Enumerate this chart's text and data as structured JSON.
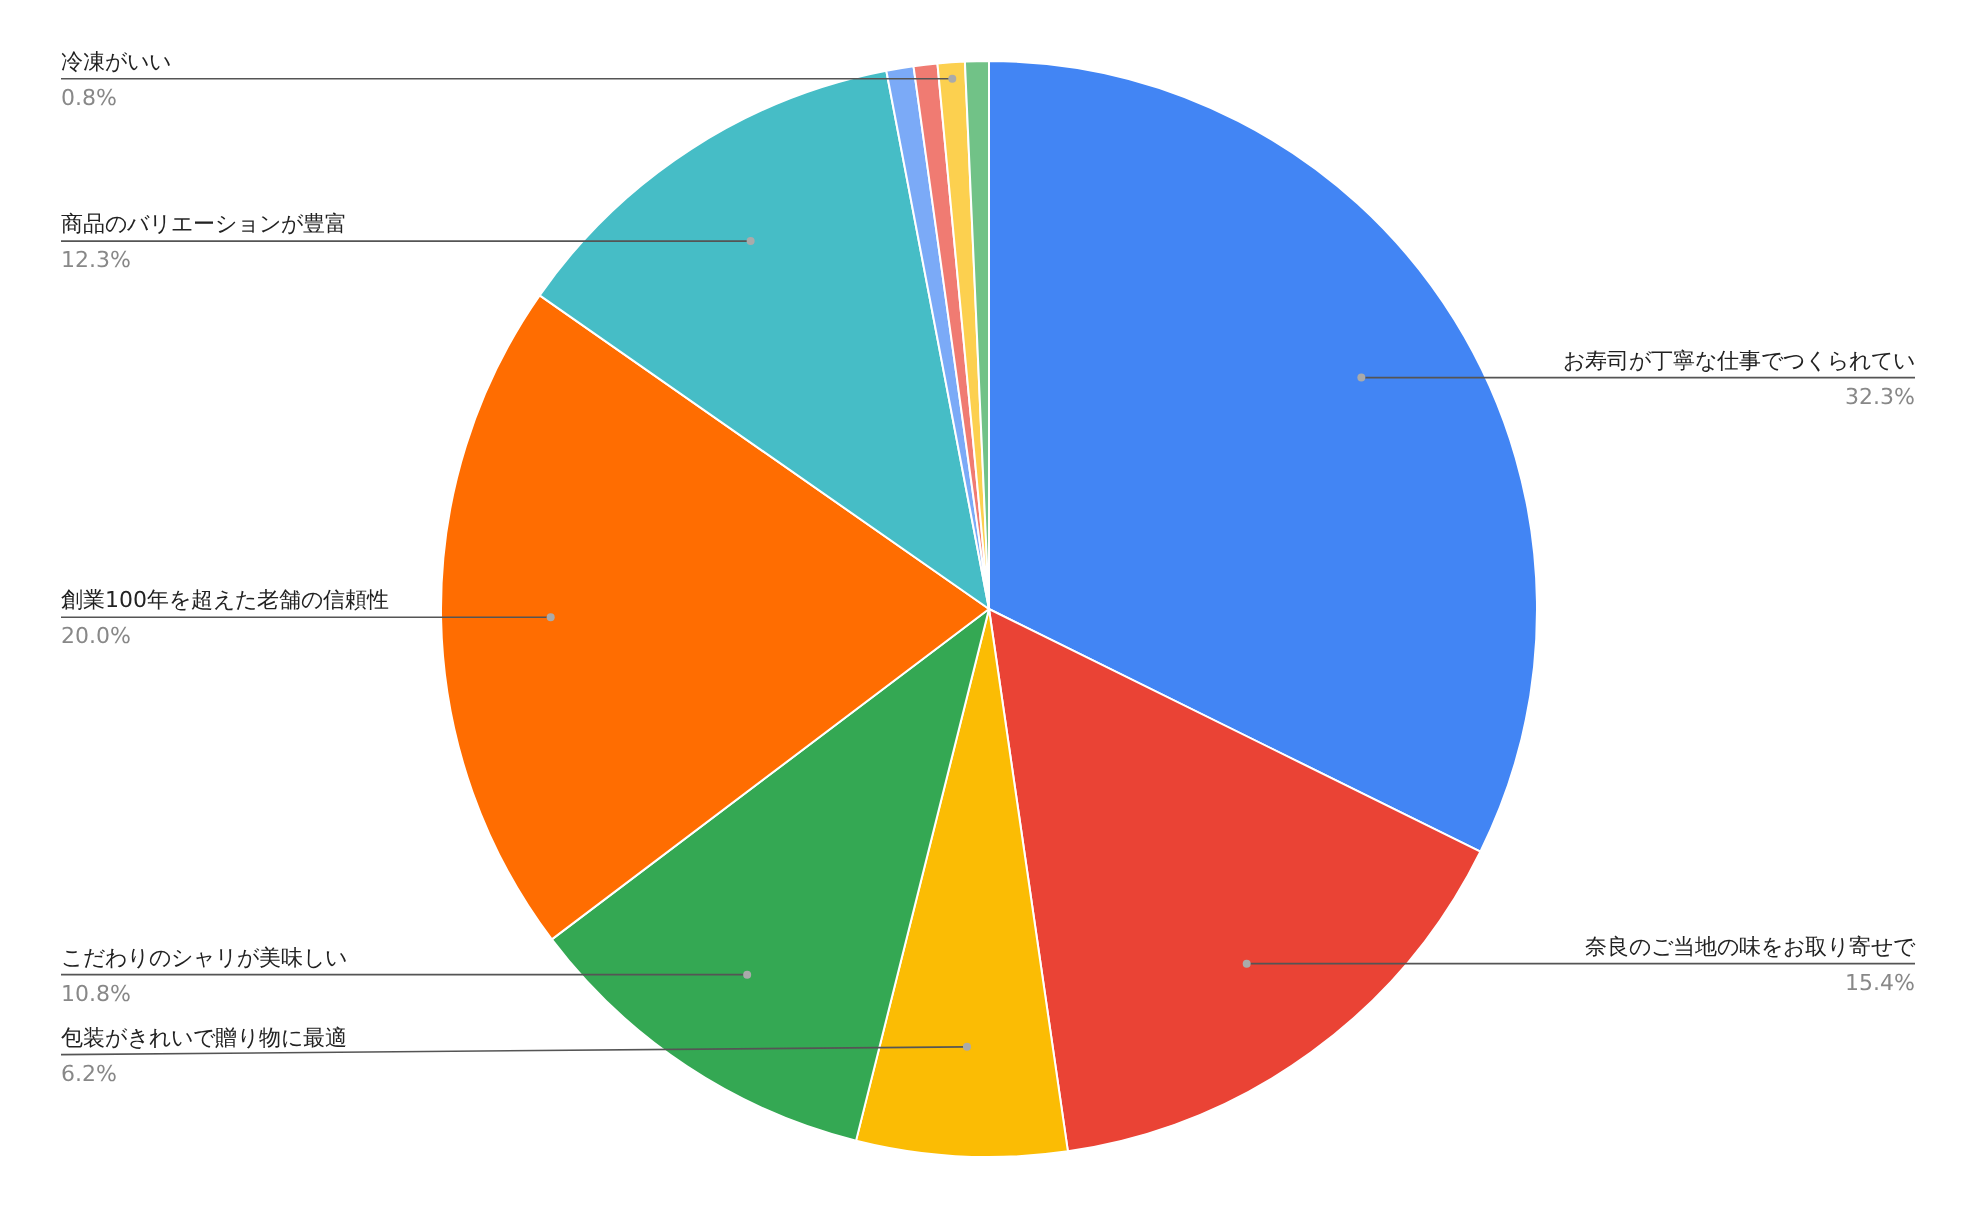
{
  "chart_data": {
    "type": "pie",
    "categories": [
      "お寿司が丁寧な仕事でつくられてい",
      "奈良のご当地の味をお取り寄せで",
      "包装がきれいで贈り物に最適",
      "こだわりのシャリが美味しい",
      "創業100年を超えた老舗の信頼性",
      "商品のバリエーションが豊富",
      null,
      null,
      "冷凍がいい",
      null
    ],
    "values": [
      32.3,
      15.4,
      6.2,
      10.8,
      20.0,
      12.3,
      0.8,
      0.7,
      0.8,
      0.7
    ],
    "value_labels": [
      "32.3%",
      "15.4%",
      "6.2%",
      "10.8%",
      "20.0%",
      "12.3%",
      null,
      null,
      "0.8%",
      null
    ],
    "colors": [
      "#4285f4",
      "#ea4335",
      "#fbbc04",
      "#34a853",
      "#ff6d01",
      "#46bdc6",
      "#7baaf7",
      "#f07b72",
      "#fcd04f",
      "#71c287"
    ]
  }
}
